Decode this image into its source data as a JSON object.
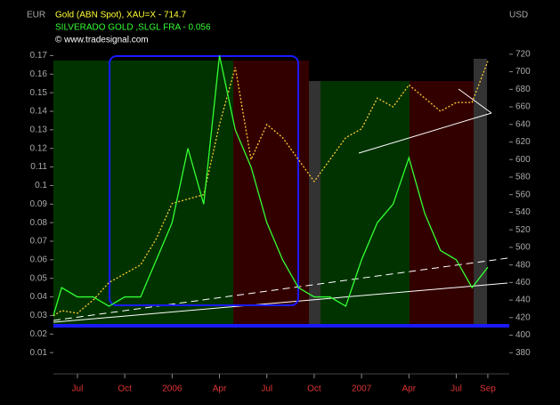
{
  "chart_data": {
    "type": "line",
    "title": "Gold (ABN Spot), XAU=X - 714.7",
    "subtitle": "SILVERADO GOLD   ,SLGL FRA - 0.056",
    "source": "© www.tradesignal.com",
    "ylabel": "EUR",
    "y2label": "USD",
    "categories": [
      null,
      null,
      "Jul",
      null,
      null,
      "Oct",
      null,
      null,
      "2006",
      null,
      null,
      "Apr",
      null,
      null,
      "Jul",
      null,
      null,
      "Oct",
      null,
      null,
      "2007",
      null,
      null,
      "Apr",
      null,
      null,
      "Jul",
      null,
      "Sep"
    ],
    "ylim": [
      0,
      0.175
    ],
    "yticks": [
      0.01,
      0.02,
      0.03,
      0.04,
      0.05,
      0.06,
      0.07,
      0.08,
      0.09,
      0.1,
      0.11,
      0.12,
      0.13,
      0.14,
      0.15,
      0.16,
      0.17
    ],
    "y2lim": [
      359,
      729
    ],
    "y2ticks": [
      380,
      400,
      420,
      440,
      460,
      480,
      500,
      520,
      540,
      560,
      580,
      600,
      620,
      640,
      660,
      680,
      700,
      720
    ],
    "series": [
      {
        "name": "Gold (ABN Spot)",
        "color": "#ffcc33",
        "axis": "y2",
        "dashed": true,
        "values": [
          422,
          428,
          425,
          440,
          460,
          470,
          480,
          510,
          550,
          555,
          560,
          640,
          705,
          600,
          640,
          625,
          600,
          575,
          600,
          625,
          635,
          670,
          660,
          685,
          670,
          655,
          665,
          665,
          712
        ]
      },
      {
        "name": "SILVERADO GOLD",
        "color": "#33ff33",
        "values": [
          0.03,
          0.045,
          0.04,
          0.04,
          0.035,
          0.04,
          0.04,
          0.06,
          0.08,
          0.12,
          0.09,
          0.17,
          0.13,
          0.11,
          0.08,
          0.06,
          0.045,
          0.04,
          0.04,
          0.035,
          0.06,
          0.08,
          0.09,
          0.115,
          0.085,
          0.065,
          0.06,
          0.045,
          0.056
        ]
      }
    ]
  }
}
